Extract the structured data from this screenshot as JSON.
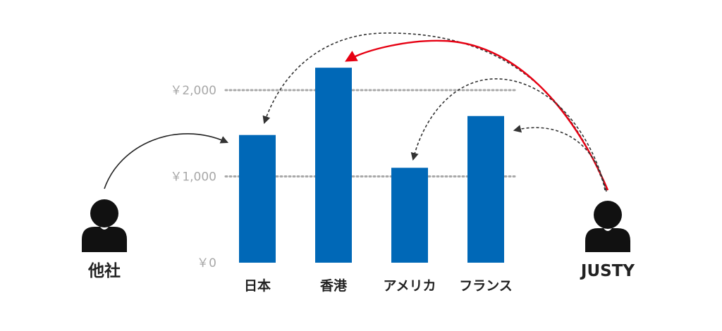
{
  "chart_data": {
    "type": "bar",
    "categories": [
      "日本",
      "香港",
      "アメリカ",
      "フランス"
    ],
    "values": [
      1480,
      2260,
      1100,
      1700
    ],
    "y_ticks": [
      {
        "value": 0,
        "label": "￥0"
      },
      {
        "value": 1000,
        "label": "￥1,000"
      },
      {
        "value": 2000,
        "label": "￥2,000"
      }
    ],
    "ylim": [
      0,
      2400
    ],
    "bar_color": "#0068b7",
    "gridline_style": "dotted"
  },
  "people": {
    "left_label": "他社",
    "right_label": "JUSTY"
  },
  "colors": {
    "highlight_arrow": "#e60012",
    "arrow": "#333333",
    "person_icon": "#111111"
  }
}
